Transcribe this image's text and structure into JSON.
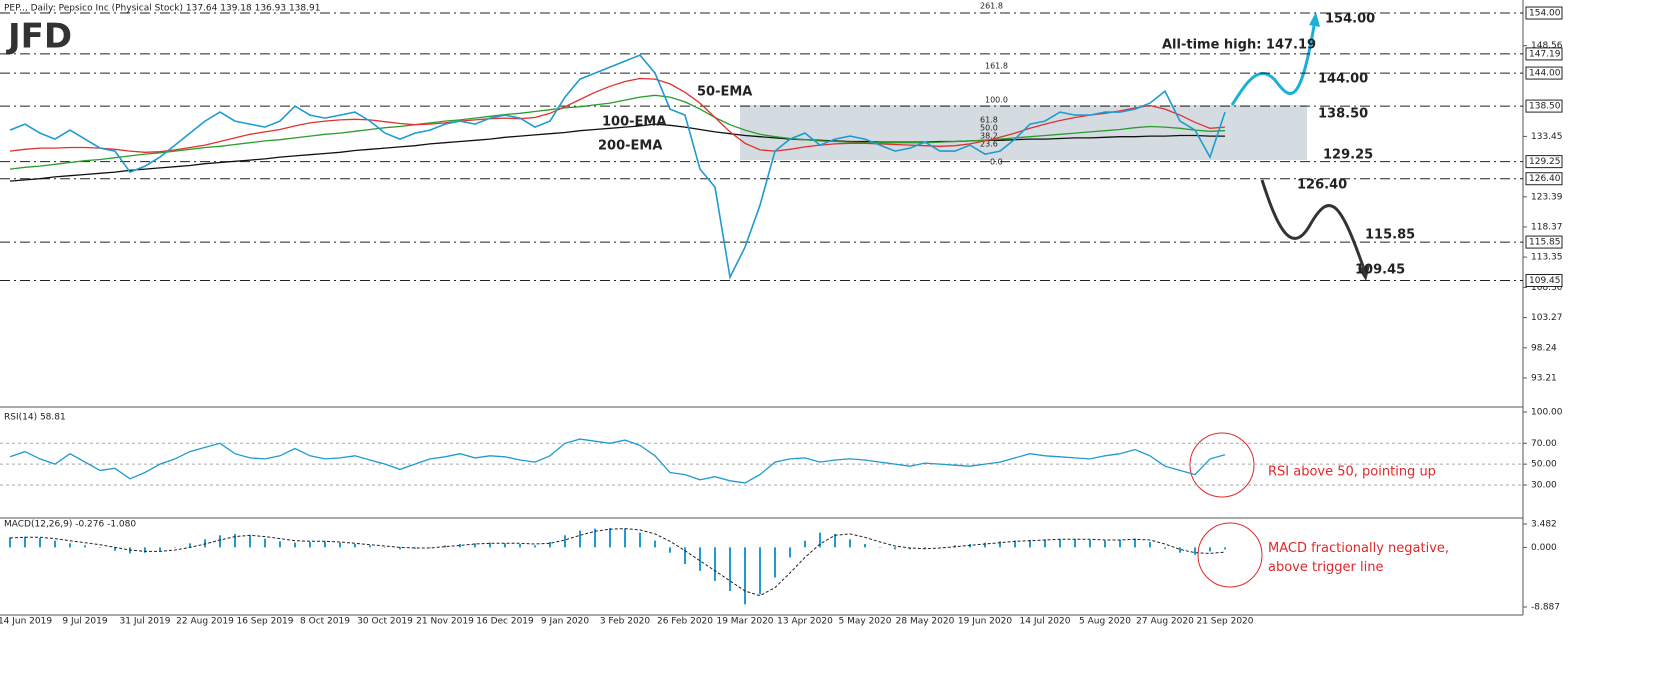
{
  "logo": "JFD",
  "chart_data": [
    {
      "type": "line",
      "title": "PEP.., Daily:  Pepsico Inc (Physical Stock)  137.64 139.18 136.93 138.91",
      "categories": [
        null,
        "14 Jun 2019",
        null,
        null,
        null,
        "9 Jul 2019",
        null,
        null,
        null,
        "31 Jul 2019",
        null,
        null,
        null,
        "22 Aug 2019",
        null,
        null,
        null,
        "16 Sep 2019",
        null,
        null,
        null,
        "8 Oct 2019",
        null,
        null,
        null,
        "30 Oct 2019",
        null,
        null,
        null,
        "21 Nov 2019",
        null,
        null,
        null,
        "16 Dec 2019",
        null,
        null,
        null,
        "9 Jan 2020",
        null,
        null,
        null,
        "3 Feb 2020",
        null,
        null,
        null,
        "26 Feb 2020",
        null,
        null,
        null,
        "19 Mar 2020",
        null,
        null,
        null,
        "13 Apr 2020",
        null,
        null,
        null,
        "5 May 2020",
        null,
        null,
        null,
        "28 May 2020",
        null,
        null,
        null,
        "19 Jun 2020",
        null,
        null,
        null,
        "14 Jul 2020",
        null,
        null,
        null,
        "5 Aug 2020",
        null,
        null,
        null,
        "27 Aug 2020",
        null,
        null,
        null,
        "21 Sep 2020"
      ],
      "values": [
        134.5,
        135.5,
        134.0,
        133.0,
        134.5,
        133.0,
        131.5,
        131.0,
        127.5,
        128.5,
        130.0,
        132.0,
        134.0,
        136.0,
        137.5,
        136.0,
        135.5,
        135.0,
        136.0,
        138.5,
        137.0,
        136.5,
        137.0,
        137.5,
        136.0,
        134.0,
        133.0,
        134.0,
        134.5,
        135.5,
        136.0,
        135.5,
        136.5,
        137.0,
        136.5,
        135.0,
        136.0,
        140.0,
        143.0,
        144.0,
        145.0,
        146.0,
        147.0,
        144.0,
        138.0,
        137.0,
        128.0,
        125.0,
        110.0,
        115.0,
        122.0,
        131.0,
        133.0,
        134.0,
        132.0,
        133.0,
        133.5,
        133.0,
        132.0,
        131.0,
        131.5,
        132.5,
        131.0,
        131.0,
        132.0,
        130.5,
        131.0,
        133.0,
        135.5,
        136.0,
        137.5,
        137.0,
        137.0,
        137.5,
        137.5,
        138.0,
        139.0,
        141.0,
        136.0,
        134.5,
        130.0,
        137.5
      ],
      "color": "#1f9bd1",
      "series": [
        {
          "name": "50-EMA",
          "color": "#e03030",
          "values": [
            131.0,
            131.3,
            131.5,
            131.5,
            131.6,
            131.6,
            131.5,
            131.3,
            131.0,
            130.8,
            130.9,
            131.2,
            131.6,
            132.0,
            132.6,
            133.2,
            133.8,
            134.2,
            134.6,
            135.2,
            135.7,
            136.0,
            136.2,
            136.3,
            136.2,
            135.9,
            135.6,
            135.4,
            135.5,
            135.7,
            136.0,
            136.2,
            136.4,
            136.5,
            136.4,
            136.6,
            137.3,
            138.4,
            139.6,
            140.8,
            141.8,
            142.6,
            143.1,
            143.0,
            142.2,
            140.8,
            139.0,
            136.6,
            134.2,
            132.3,
            131.2,
            131.0,
            131.3,
            131.7,
            132.0,
            132.2,
            132.3,
            132.3,
            132.2,
            132.1,
            132.0,
            131.9,
            131.8,
            131.9,
            132.2,
            132.7,
            133.3,
            134.0,
            134.8,
            135.5,
            136.1,
            136.6,
            137.0,
            137.3,
            137.7,
            138.2,
            138.6,
            138.0,
            137.0,
            135.8,
            134.8,
            135.0
          ]
        },
        {
          "name": "100-EMA",
          "color": "#2a9d2a",
          "values": [
            128.0,
            128.3,
            128.5,
            128.8,
            129.1,
            129.4,
            129.6,
            129.9,
            130.2,
            130.5,
            130.7,
            131.0,
            131.3,
            131.6,
            131.8,
            132.1,
            132.4,
            132.7,
            132.9,
            133.2,
            133.5,
            133.8,
            134.0,
            134.3,
            134.6,
            134.9,
            135.1,
            135.4,
            135.7,
            136.0,
            136.2,
            136.5,
            136.8,
            137.1,
            137.3,
            137.6,
            137.9,
            138.2,
            138.4,
            138.7,
            139.0,
            139.5,
            140.0,
            140.3,
            140.0,
            139.2,
            138.0,
            136.6,
            135.4,
            134.5,
            133.8,
            133.4,
            133.1,
            132.9,
            132.7,
            132.6,
            132.5,
            132.4,
            132.4,
            132.4,
            132.4,
            132.4,
            132.5,
            132.6,
            132.7,
            132.8,
            133.0,
            133.2,
            133.4,
            133.6,
            133.8,
            134.0,
            134.2,
            134.4,
            134.6,
            134.9,
            135.1,
            135.0,
            134.8,
            134.5,
            134.3,
            134.4
          ]
        },
        {
          "name": "200-EMA",
          "color": "#111111",
          "values": [
            126.0,
            126.2,
            126.4,
            126.7,
            126.9,
            127.1,
            127.3,
            127.5,
            127.8,
            128.0,
            128.2,
            128.4,
            128.6,
            128.9,
            129.1,
            129.3,
            129.5,
            129.7,
            130.0,
            130.2,
            130.4,
            130.6,
            130.8,
            131.1,
            131.3,
            131.5,
            131.7,
            131.9,
            132.2,
            132.4,
            132.6,
            132.8,
            133.0,
            133.3,
            133.5,
            133.7,
            133.9,
            134.1,
            134.4,
            134.6,
            134.8,
            135.0,
            135.2,
            135.5,
            135.3,
            135.0,
            134.6,
            134.2,
            133.9,
            133.6,
            133.4,
            133.2,
            133.0,
            132.9,
            132.8,
            132.7,
            132.6,
            132.6,
            132.5,
            132.5,
            132.5,
            132.5,
            132.6,
            132.6,
            132.7,
            132.8,
            132.8,
            132.9,
            133.0,
            133.0,
            133.1,
            133.2,
            133.2,
            133.3,
            133.4,
            133.4,
            133.5,
            133.5,
            133.6,
            133.6,
            133.5,
            133.5
          ]
        }
      ],
      "ylim": [
        88.38,
        156.17
      ],
      "yticks": [
        148.56,
        133.45,
        123.39,
        118.37,
        113.35,
        {
          "value": 108.3,
          "label": "108.30"
        },
        103.27,
        98.24,
        93.21
      ],
      "levels": [
        {
          "value": 154,
          "label": "154.00"
        },
        {
          "value": 147.19,
          "label": "147.19"
        },
        {
          "value": 144,
          "label": "144.00"
        },
        {
          "value": 138.5,
          "label": "138.50"
        },
        {
          "value": 129.25,
          "label": "129.25"
        },
        {
          "value": 126.4,
          "label": "126.40"
        },
        {
          "value": 115.85,
          "label": "115.85"
        },
        {
          "value": 109.45,
          "label": "109.45"
        }
      ],
      "annotations": [
        "All-time high: 147.19",
        "154.00",
        "144.00",
        "138.50",
        "129.25",
        "126.40",
        "115.85",
        "109.45"
      ],
      "fib_labels": [
        "261.8",
        "161.8",
        "100.0",
        "61.8",
        "50.0",
        "38.2",
        "23.6",
        "0.0"
      ]
    },
    {
      "type": "line",
      "title": "RSI(14) 58.81",
      "color": "#1f9bd1",
      "values": [
        57,
        62,
        55,
        50,
        60,
        52,
        44,
        46,
        36,
        42,
        50,
        55,
        62,
        66,
        70,
        60,
        56,
        55,
        58,
        65,
        58,
        55,
        56,
        58,
        54,
        50,
        45,
        50,
        55,
        57,
        60,
        56,
        58,
        57,
        54,
        52,
        58,
        70,
        74,
        72,
        70,
        73,
        68,
        58,
        42,
        40,
        35,
        38,
        34,
        32,
        40,
        52,
        55,
        56,
        52,
        54,
        55,
        54,
        52,
        50,
        48,
        51,
        50,
        49,
        48,
        50,
        52,
        56,
        60,
        58,
        57,
        56,
        55,
        58,
        60,
        64,
        58,
        48,
        44,
        40,
        55,
        59
      ],
      "ylim": [
        -1.6,
        103.8
      ],
      "yticks": [
        {
          "value": 100,
          "label": "100.00"
        },
        {
          "value": 70,
          "label": "70.00"
        },
        {
          "value": 50,
          "label": "50.00"
        },
        {
          "value": 30,
          "label": "30.00"
        }
      ],
      "note": "RSI above 50, pointing up"
    },
    {
      "type": "bar",
      "title": "MACD(12,26,9) -0.276 -1.080",
      "color": "#1f9bd1",
      "values": [
        1.5,
        1.6,
        1.4,
        1.0,
        0.6,
        0.3,
        0.0,
        -0.5,
        -0.9,
        -0.8,
        -0.5,
        0.0,
        0.6,
        1.2,
        1.8,
        2.0,
        1.8,
        1.3,
        0.9,
        0.7,
        0.8,
        0.9,
        0.7,
        0.5,
        0.3,
        0.0,
        -0.3,
        -0.2,
        0.0,
        0.3,
        0.5,
        0.6,
        0.7,
        0.6,
        0.5,
        0.3,
        0.8,
        1.8,
        2.5,
        2.8,
        2.9,
        2.8,
        2.2,
        1.0,
        -0.8,
        -2.5,
        -3.5,
        -5.0,
        -6.5,
        -8.5,
        -7.0,
        -4.5,
        -1.5,
        1.0,
        2.2,
        2.0,
        1.2,
        0.5,
        0.0,
        -0.3,
        -0.3,
        -0.2,
        0.0,
        0.3,
        0.5,
        0.7,
        0.9,
        1.0,
        1.1,
        1.2,
        1.2,
        1.2,
        1.1,
        1.0,
        1.1,
        1.3,
        0.8,
        -0.2,
        -0.8,
        -1.1,
        -0.6,
        -0.3
      ],
      "signal_values": [
        1.4,
        1.5,
        1.5,
        1.3,
        1.0,
        0.7,
        0.4,
        0.0,
        -0.4,
        -0.6,
        -0.6,
        -0.4,
        0.0,
        0.5,
        1.1,
        1.6,
        1.8,
        1.6,
        1.3,
        1.0,
        0.9,
        0.9,
        0.8,
        0.6,
        0.4,
        0.2,
        0.0,
        -0.1,
        -0.1,
        0.1,
        0.3,
        0.5,
        0.6,
        0.6,
        0.6,
        0.5,
        0.6,
        1.1,
        1.8,
        2.4,
        2.7,
        2.8,
        2.6,
        2.0,
        0.9,
        -0.5,
        -2.0,
        -3.5,
        -5.0,
        -6.5,
        -7.2,
        -6.0,
        -3.8,
        -1.5,
        0.5,
        1.8,
        2.0,
        1.5,
        0.8,
        0.2,
        -0.1,
        -0.2,
        -0.1,
        0.1,
        0.3,
        0.5,
        0.7,
        0.9,
        1.0,
        1.1,
        1.2,
        1.2,
        1.2,
        1.1,
        1.1,
        1.2,
        1.1,
        0.5,
        -0.3,
        -0.8,
        -0.9,
        -0.7
      ],
      "ylim": [
        -10.08,
        4.227
      ],
      "yticks": [
        3.482,
        {
          "value": 0,
          "label": "0.000"
        },
        -8.887
      ],
      "note": "MACD fractionally negative, above trigger line"
    }
  ]
}
